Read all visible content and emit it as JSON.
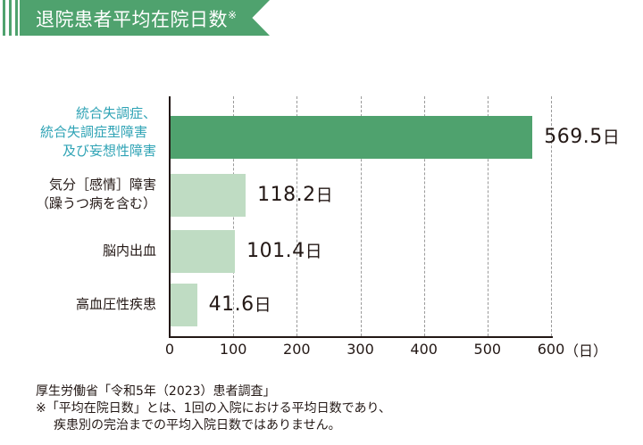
{
  "header": {
    "title": "退院患者平均在院日数",
    "title_mark": "※",
    "accent_color": "#4fa26e"
  },
  "chart_data": {
    "type": "bar",
    "orientation": "horizontal",
    "title": "退院患者平均在院日数※",
    "categories": [
      "統合失調症、統合失調症型障害及び妄想性障害",
      "気分［感情］障害（躁うつ病を含む）",
      "脳内出血",
      "高血圧性疾患"
    ],
    "values": [
      569.5,
      118.2,
      101.4,
      41.6
    ],
    "value_labels": [
      "569.5",
      "118.2",
      "101.4",
      "41.6"
    ],
    "value_unit": "日",
    "xlabel": "（日）",
    "ylabel": "",
    "xlim": [
      0,
      600
    ],
    "xticks": [
      "0",
      "100",
      "200",
      "300",
      "400",
      "500",
      "600"
    ],
    "grid": "vertical dashed",
    "colors": [
      "#4fa26e",
      "#bfdcc3",
      "#bfdcc3",
      "#bfdcc3"
    ],
    "highlight_label_color": "#2fa3b5"
  },
  "labels": {
    "cat0_line1": "統合失調症、",
    "cat0_line2": "統合失調症型障害",
    "cat0_line3": "及び妄想性障害",
    "cat1_line1": "気分［感情］障害",
    "cat1_line2": "（躁うつ病を含む）",
    "cat2": "脳内出血",
    "cat3": "高血圧性疾患"
  },
  "footer": {
    "source": "厚生労働省「令和5年（2023）患者調査」",
    "note_line1": "※「平均在院日数」とは、1回の入院における平均日数であり、",
    "note_line2": "疾患別の完治までの平均入院日数ではありません。"
  }
}
